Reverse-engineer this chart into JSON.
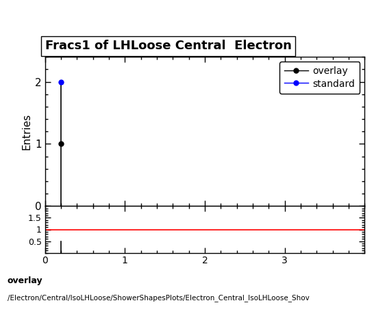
{
  "title": "Fracs1 of LHLoose Central  Electron",
  "title_fontsize": 13,
  "ylabel_main": "Entries",
  "xlim": [
    0,
    4
  ],
  "ylim_main": [
    0,
    2.4
  ],
  "yticks_main": [
    0,
    1,
    2
  ],
  "ylim_ratio": [
    0,
    2.0
  ],
  "yticks_ratio": [
    0.5,
    1.0,
    1.5
  ],
  "overlay_x": [
    0.2
  ],
  "overlay_y": [
    1
  ],
  "standard_x": [
    0.2
  ],
  "standard_y": [
    2
  ],
  "overlay_color": "#000000",
  "standard_color": "#0000ff",
  "ratio_line_color": "#ff0000",
  "ratio_bar_x": [
    0.2
  ],
  "xticks": [
    0,
    1,
    2,
    3
  ],
  "footer_text1": "overlay",
  "footer_text2": "/Electron/Central/IsoLHLoose/ShowerShapesPlots/Electron_Central_IsoLHLoose_Shov",
  "bg_color": "#ffffff"
}
